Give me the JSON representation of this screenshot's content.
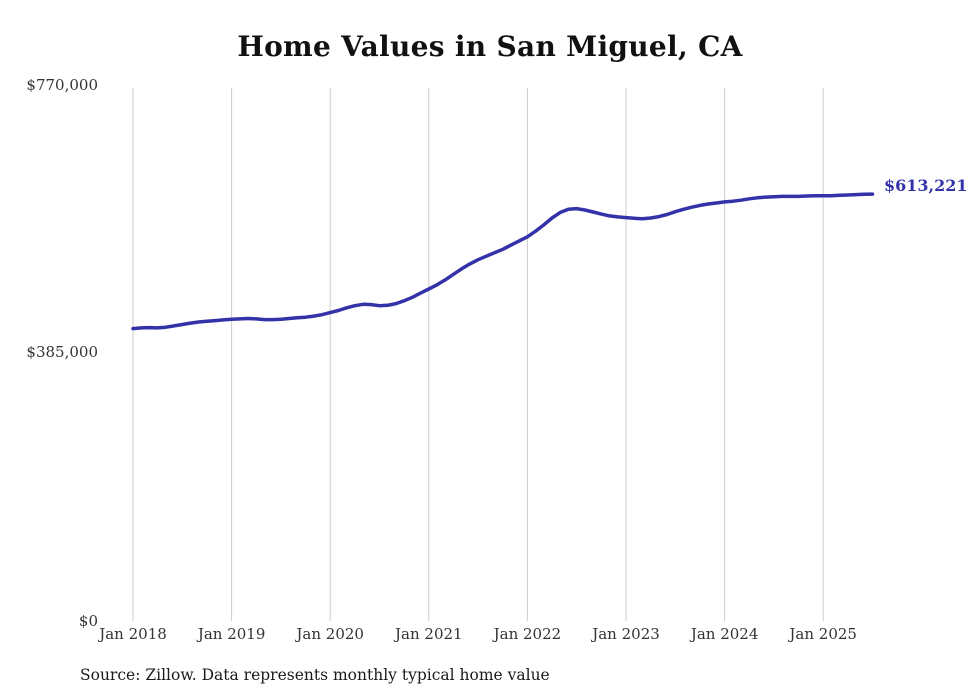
{
  "chart": {
    "title": "Home Values in San Miguel, CA"
  },
  "source_note": "Source: Zillow. Data represents monthly typical home value",
  "colors": {
    "line": "#3432a8",
    "end_label": "#3432a8",
    "gridline": "#cccccc",
    "title": "#111111",
    "axis_text": "#333333",
    "background": "#ffffff"
  },
  "chart_data": {
    "type": "line",
    "title": "Home Values in San Miguel, CA",
    "xlabel": "",
    "ylabel": "",
    "ylim": [
      0,
      770000
    ],
    "grid": "vertical-only",
    "legend": "none",
    "frequency": "monthly",
    "x_start": "2018-01",
    "x_end": "2025-07",
    "x_tick_labels": [
      "Jan 2018",
      "Jan 2019",
      "Jan 2020",
      "Jan 2021",
      "Jan 2022",
      "Jan 2023",
      "Jan 2024",
      "Jan 2025"
    ],
    "y_tick_labels": [
      "$770,000",
      "$385,000",
      "$0"
    ],
    "y_tick_values": [
      770000,
      385000,
      0
    ],
    "end_label": "$613,221",
    "end_value": 613221,
    "series_name": "Typical home value",
    "values": [
      420000,
      421000,
      421500,
      421000,
      422000,
      424000,
      426000,
      428000,
      429500,
      430500,
      431500,
      432500,
      433500,
      434000,
      434500,
      434000,
      433000,
      433000,
      433500,
      434500,
      435500,
      436500,
      438000,
      440000,
      443000,
      446000,
      450000,
      453000,
      455000,
      454500,
      453000,
      453500,
      456000,
      460000,
      465000,
      471000,
      477000,
      483000,
      490000,
      498000,
      506000,
      513000,
      519000,
      524000,
      529000,
      534000,
      540000,
      546000,
      552000,
      560000,
      569000,
      579000,
      587000,
      591500,
      592500,
      590500,
      587500,
      584500,
      582000,
      580500,
      579500,
      578500,
      578000,
      579000,
      581000,
      584000,
      588000,
      591500,
      594500,
      597000,
      599000,
      600500,
      602000,
      603000,
      604500,
      606500,
      608000,
      609000,
      609500,
      610000,
      610000,
      610000,
      610500,
      611000,
      611000,
      611000,
      611500,
      612000,
      612500,
      613000,
      613221
    ]
  }
}
